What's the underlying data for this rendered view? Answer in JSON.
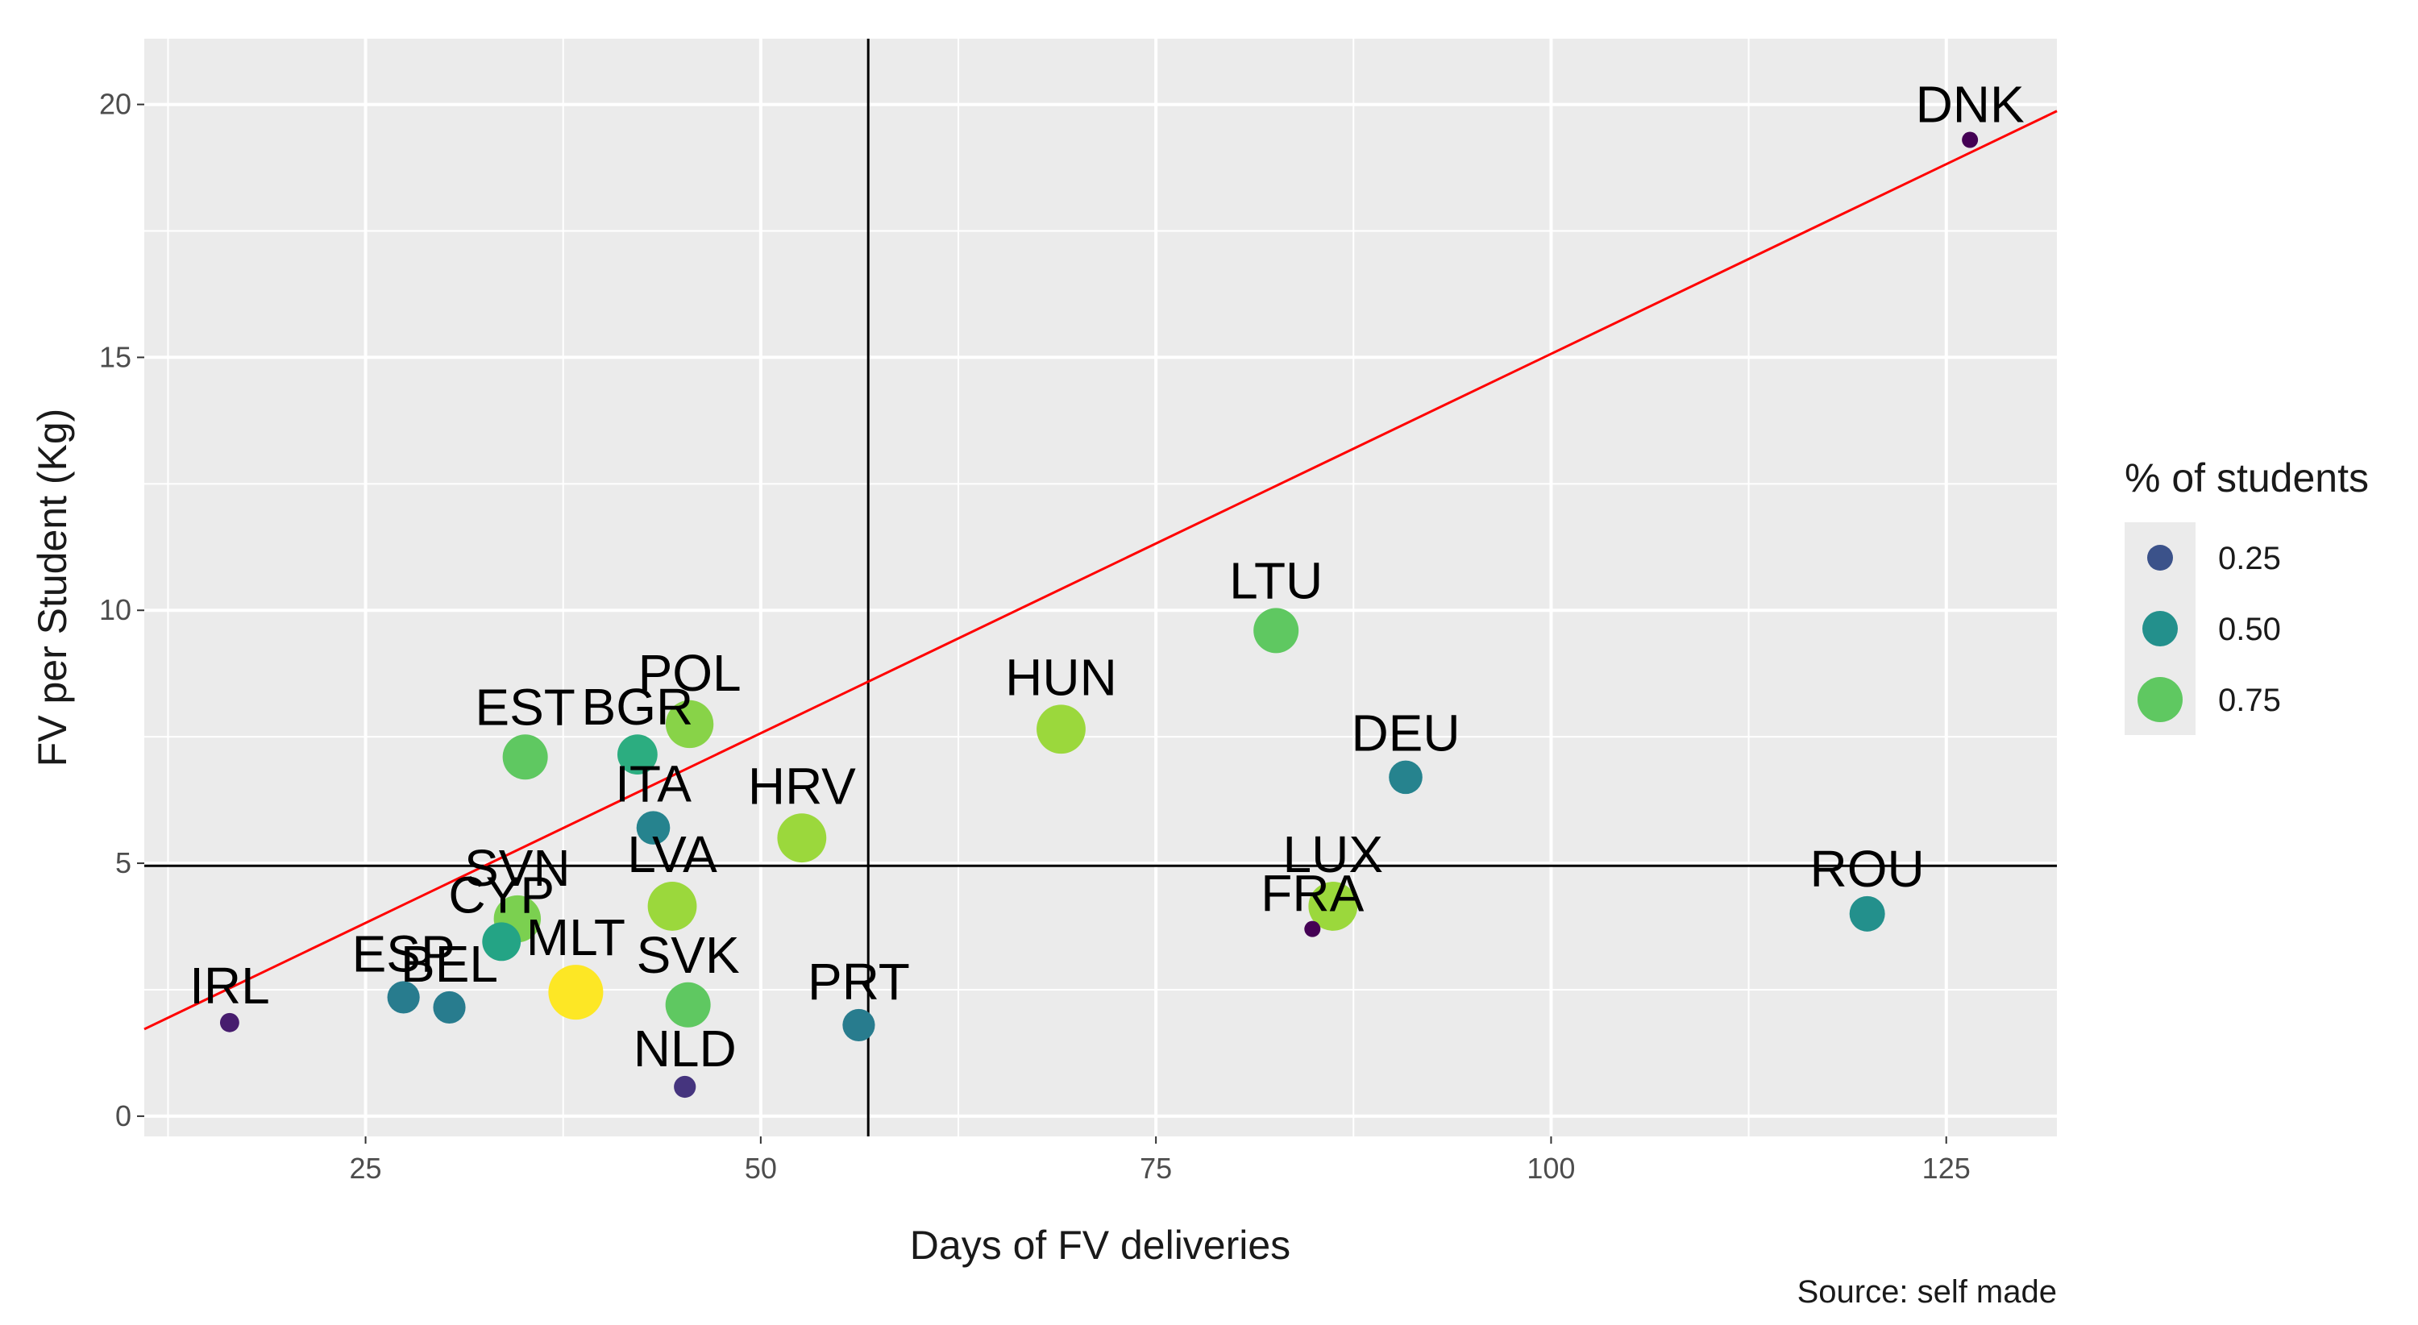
{
  "chart_data": {
    "type": "scatter",
    "xlabel": "Days of FV deliveries",
    "ylabel": "FV per Student (Kg)",
    "caption": "Source: self made",
    "xlim": [
      11,
      132
    ],
    "ylim": [
      -0.4,
      21.3
    ],
    "xticks": [
      25,
      50,
      75,
      100,
      125
    ],
    "yticks": [
      0,
      5,
      10,
      15,
      20
    ],
    "xtick_labels": [
      "25",
      "50",
      "75",
      "100",
      "125"
    ],
    "ytick_labels": [
      "0",
      "5",
      "10",
      "15",
      "20"
    ],
    "vline_x": 56.8,
    "hline_y": 4.95,
    "trend_line": {
      "intercept": 0.07,
      "slope": 0.15
    },
    "legend": {
      "title": "% of students",
      "entries": [
        {
          "label": "0.25",
          "value": 0.25
        },
        {
          "label": "0.50",
          "value": 0.5
        },
        {
          "label": "0.75",
          "value": 0.75
        }
      ]
    },
    "points": [
      {
        "label": "DNK",
        "x": 126.5,
        "y": 19.3,
        "pct": 0.0
      },
      {
        "label": "LTU",
        "x": 82.6,
        "y": 9.6,
        "pct": 0.75
      },
      {
        "label": "HUN",
        "x": 69.0,
        "y": 7.65,
        "pct": 0.85
      },
      {
        "label": "DEU",
        "x": 90.8,
        "y": 6.7,
        "pct": 0.45
      },
      {
        "label": "POL",
        "x": 45.5,
        "y": 7.75,
        "pct": 0.82
      },
      {
        "label": "EST",
        "x": 35.1,
        "y": 7.1,
        "pct": 0.75
      },
      {
        "label": "BGR",
        "x": 42.2,
        "y": 7.15,
        "pct": 0.62
      },
      {
        "label": "ITA",
        "x": 43.2,
        "y": 5.7,
        "pct": 0.45
      },
      {
        "label": "HRV",
        "x": 52.6,
        "y": 5.5,
        "pct": 0.85
      },
      {
        "label": "LVA",
        "x": 44.4,
        "y": 4.15,
        "pct": 0.85
      },
      {
        "label": "SVN",
        "x": 34.6,
        "y": 3.9,
        "pct": 0.8
      },
      {
        "label": "CYP",
        "x": 33.6,
        "y": 3.45,
        "pct": 0.58
      },
      {
        "label": "LUX",
        "x": 86.2,
        "y": 4.15,
        "pct": 0.85
      },
      {
        "label": "FRA",
        "x": 84.9,
        "y": 3.7,
        "pct": 0.0
      },
      {
        "label": "ROU",
        "x": 120.0,
        "y": 4.0,
        "pct": 0.5
      },
      {
        "label": "MLT",
        "x": 38.3,
        "y": 2.45,
        "pct": 1.0
      },
      {
        "label": "SVK",
        "x": 45.4,
        "y": 2.2,
        "pct": 0.75
      },
      {
        "label": "ESP",
        "x": 27.4,
        "y": 2.35,
        "pct": 0.42
      },
      {
        "label": "BEL",
        "x": 30.3,
        "y": 2.15,
        "pct": 0.42
      },
      {
        "label": "IRL",
        "x": 16.4,
        "y": 1.85,
        "pct": 0.08
      },
      {
        "label": "PRT",
        "x": 56.2,
        "y": 1.8,
        "pct": 0.42
      },
      {
        "label": "NLD",
        "x": 45.2,
        "y": 0.58,
        "pct": 0.15
      }
    ]
  }
}
